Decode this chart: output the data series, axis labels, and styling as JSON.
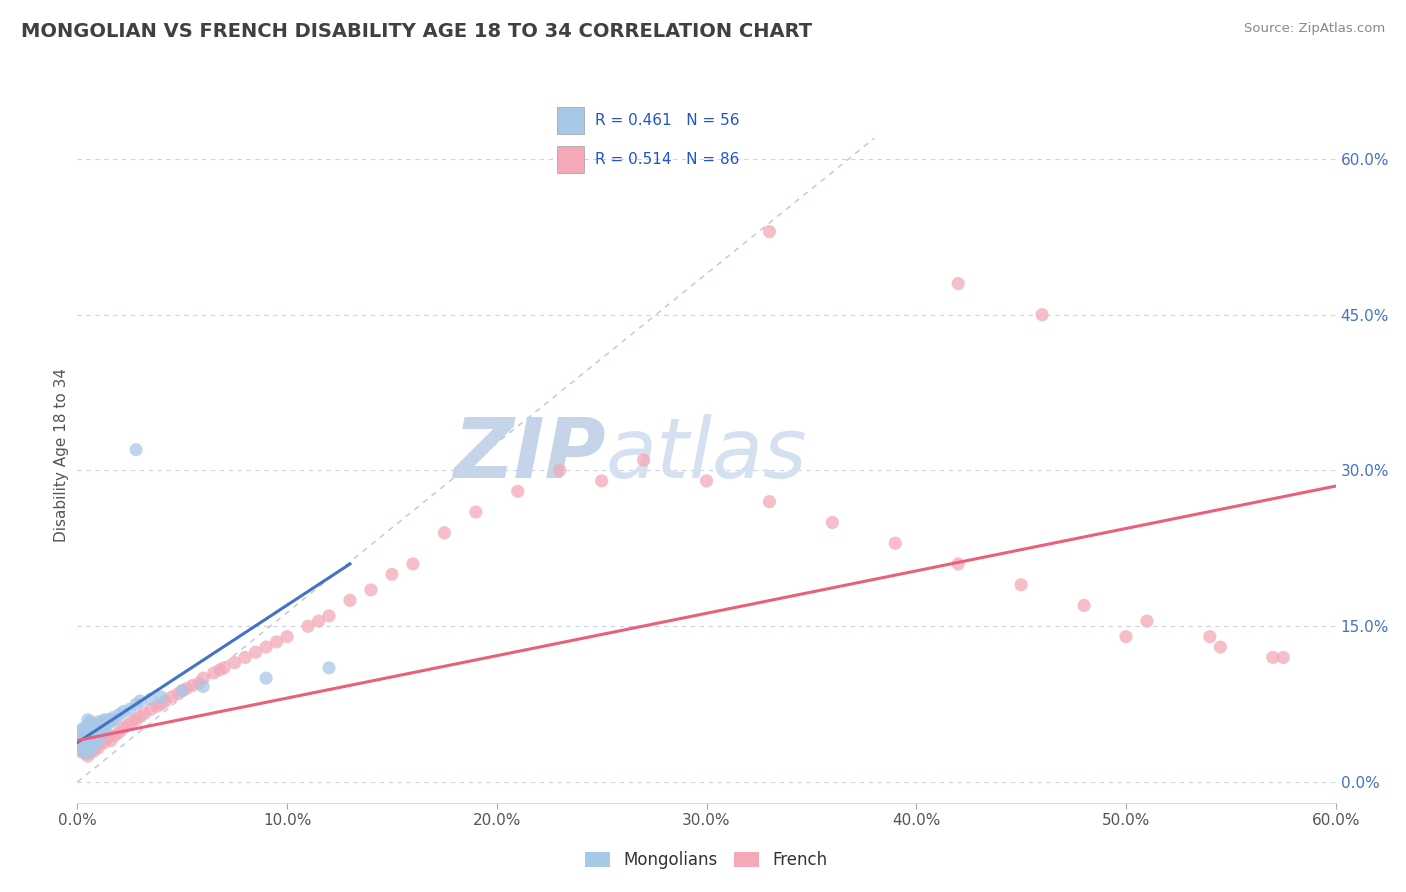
{
  "title": "MONGOLIAN VS FRENCH DISABILITY AGE 18 TO 34 CORRELATION CHART",
  "source": "Source: ZipAtlas.com",
  "ylabel": "Disability Age 18 to 34",
  "xlim": [
    0.0,
    0.6
  ],
  "ylim": [
    -0.02,
    0.65
  ],
  "x_ticks": [
    0.0,
    0.1,
    0.2,
    0.3,
    0.4,
    0.5,
    0.6
  ],
  "x_tick_labels": [
    "0.0%",
    "10.0%",
    "20.0%",
    "30.0%",
    "40.0%",
    "50.0%",
    "60.0%"
  ],
  "y_ticks_right": [
    0.0,
    0.15,
    0.3,
    0.45,
    0.6
  ],
  "y_tick_labels_right": [
    "0.0%",
    "15.0%",
    "30.0%",
    "45.0%",
    "60.0%"
  ],
  "mongolian_R": 0.461,
  "mongolian_N": 56,
  "french_R": 0.514,
  "french_N": 86,
  "mongolian_color": "#a8c8e8",
  "french_color": "#f4a8b8",
  "mongolian_line_color": "#4472c4",
  "french_line_color": "#e8607a",
  "diagonal_color": "#b8c8d8",
  "background_color": "#ffffff",
  "grid_color": "#c8d4e0",
  "watermark_zip_color": "#ccd8e8",
  "watermark_atlas_color": "#d0dce8",
  "legend_R_color": "#2255cc",
  "title_color": "#404040",
  "mongolian_x": [
    0.001,
    0.002,
    0.002,
    0.003,
    0.003,
    0.003,
    0.004,
    0.004,
    0.004,
    0.004,
    0.005,
    0.005,
    0.005,
    0.005,
    0.005,
    0.006,
    0.006,
    0.006,
    0.006,
    0.006,
    0.007,
    0.007,
    0.007,
    0.007,
    0.008,
    0.008,
    0.008,
    0.009,
    0.009,
    0.009,
    0.01,
    0.01,
    0.01,
    0.011,
    0.011,
    0.012,
    0.012,
    0.013,
    0.013,
    0.014,
    0.015,
    0.016,
    0.017,
    0.018,
    0.02,
    0.022,
    0.025,
    0.028,
    0.03,
    0.035,
    0.04,
    0.05,
    0.06,
    0.09,
    0.12,
    0.028
  ],
  "mongolian_y": [
    0.045,
    0.05,
    0.038,
    0.052,
    0.044,
    0.03,
    0.048,
    0.042,
    0.035,
    0.028,
    0.06,
    0.053,
    0.046,
    0.04,
    0.033,
    0.058,
    0.052,
    0.045,
    0.038,
    0.03,
    0.056,
    0.05,
    0.043,
    0.035,
    0.054,
    0.048,
    0.04,
    0.055,
    0.047,
    0.038,
    0.058,
    0.05,
    0.042,
    0.055,
    0.046,
    0.058,
    0.048,
    0.06,
    0.05,
    0.055,
    0.06,
    0.058,
    0.062,
    0.06,
    0.065,
    0.068,
    0.07,
    0.075,
    0.078,
    0.08,
    0.082,
    0.088,
    0.092,
    0.1,
    0.11,
    0.32
  ],
  "french_x": [
    0.001,
    0.001,
    0.002,
    0.002,
    0.003,
    0.003,
    0.003,
    0.004,
    0.004,
    0.005,
    0.005,
    0.005,
    0.006,
    0.006,
    0.006,
    0.007,
    0.007,
    0.008,
    0.008,
    0.009,
    0.009,
    0.01,
    0.01,
    0.011,
    0.012,
    0.013,
    0.014,
    0.015,
    0.016,
    0.018,
    0.02,
    0.022,
    0.024,
    0.026,
    0.028,
    0.03,
    0.032,
    0.035,
    0.038,
    0.04,
    0.042,
    0.045,
    0.048,
    0.05,
    0.052,
    0.055,
    0.058,
    0.06,
    0.065,
    0.068,
    0.07,
    0.075,
    0.08,
    0.085,
    0.09,
    0.095,
    0.1,
    0.11,
    0.115,
    0.12,
    0.13,
    0.14,
    0.15,
    0.16,
    0.175,
    0.19,
    0.21,
    0.23,
    0.25,
    0.27,
    0.3,
    0.33,
    0.36,
    0.39,
    0.42,
    0.45,
    0.48,
    0.51,
    0.54,
    0.57,
    0.33,
    0.42,
    0.46,
    0.5,
    0.545,
    0.575
  ],
  "french_y": [
    0.04,
    0.03,
    0.042,
    0.035,
    0.045,
    0.038,
    0.028,
    0.042,
    0.035,
    0.04,
    0.033,
    0.025,
    0.043,
    0.036,
    0.028,
    0.04,
    0.033,
    0.038,
    0.03,
    0.042,
    0.035,
    0.04,
    0.033,
    0.038,
    0.042,
    0.038,
    0.042,
    0.045,
    0.04,
    0.045,
    0.048,
    0.052,
    0.055,
    0.058,
    0.06,
    0.063,
    0.066,
    0.07,
    0.073,
    0.075,
    0.078,
    0.082,
    0.085,
    0.088,
    0.09,
    0.093,
    0.095,
    0.1,
    0.105,
    0.108,
    0.11,
    0.115,
    0.12,
    0.125,
    0.13,
    0.135,
    0.14,
    0.15,
    0.155,
    0.16,
    0.175,
    0.185,
    0.2,
    0.21,
    0.24,
    0.26,
    0.28,
    0.3,
    0.29,
    0.31,
    0.29,
    0.27,
    0.25,
    0.23,
    0.21,
    0.19,
    0.17,
    0.155,
    0.14,
    0.12,
    0.53,
    0.48,
    0.45,
    0.14,
    0.13,
    0.12
  ],
  "mongolian_trend_x": [
    0.0,
    0.13
  ],
  "mongolian_trend_y": [
    0.038,
    0.21
  ],
  "french_trend_x": [
    0.0,
    0.6
  ],
  "french_trend_y": [
    0.04,
    0.285
  ]
}
